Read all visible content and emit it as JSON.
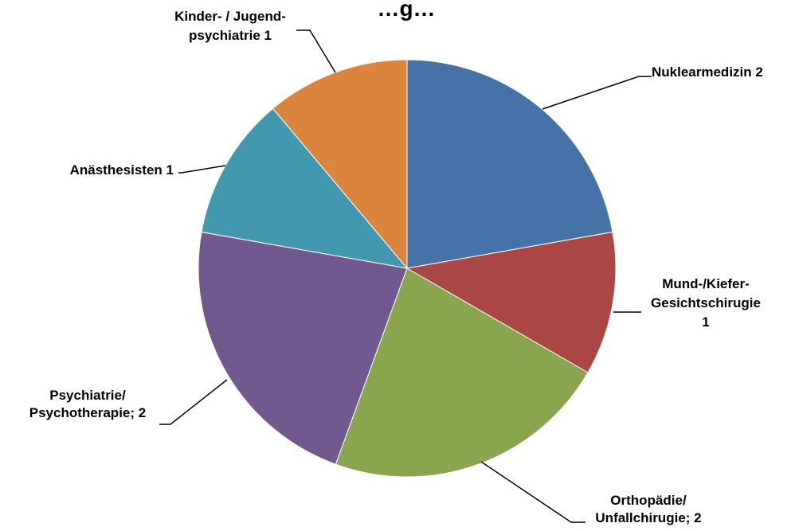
{
  "chart_data": {
    "type": "pie",
    "title": "…g…",
    "slices": [
      {
        "label_lines": [
          "Nuklearmedizin 2"
        ],
        "value": 2,
        "color": "#4572A7"
      },
      {
        "label_lines": [
          "Mund-/Kiefer-",
          "Gesichtschirugie",
          "1"
        ],
        "value": 1,
        "color": "#AA4643"
      },
      {
        "label_lines": [
          "Orthopädie/",
          "Unfallchirugie; 2"
        ],
        "value": 2,
        "color": "#89A54E"
      },
      {
        "label_lines": [
          "Psychiatrie/",
          "Psychotherapie; 2"
        ],
        "value": 2,
        "color": "#71588F"
      },
      {
        "label_lines": [
          "Anästhesisten 1"
        ],
        "value": 1,
        "color": "#4198AF"
      },
      {
        "label_lines": [
          "Kinder- / Jugend-",
          "psychiatrie 1"
        ],
        "value": 1,
        "color": "#DB843D"
      }
    ]
  }
}
